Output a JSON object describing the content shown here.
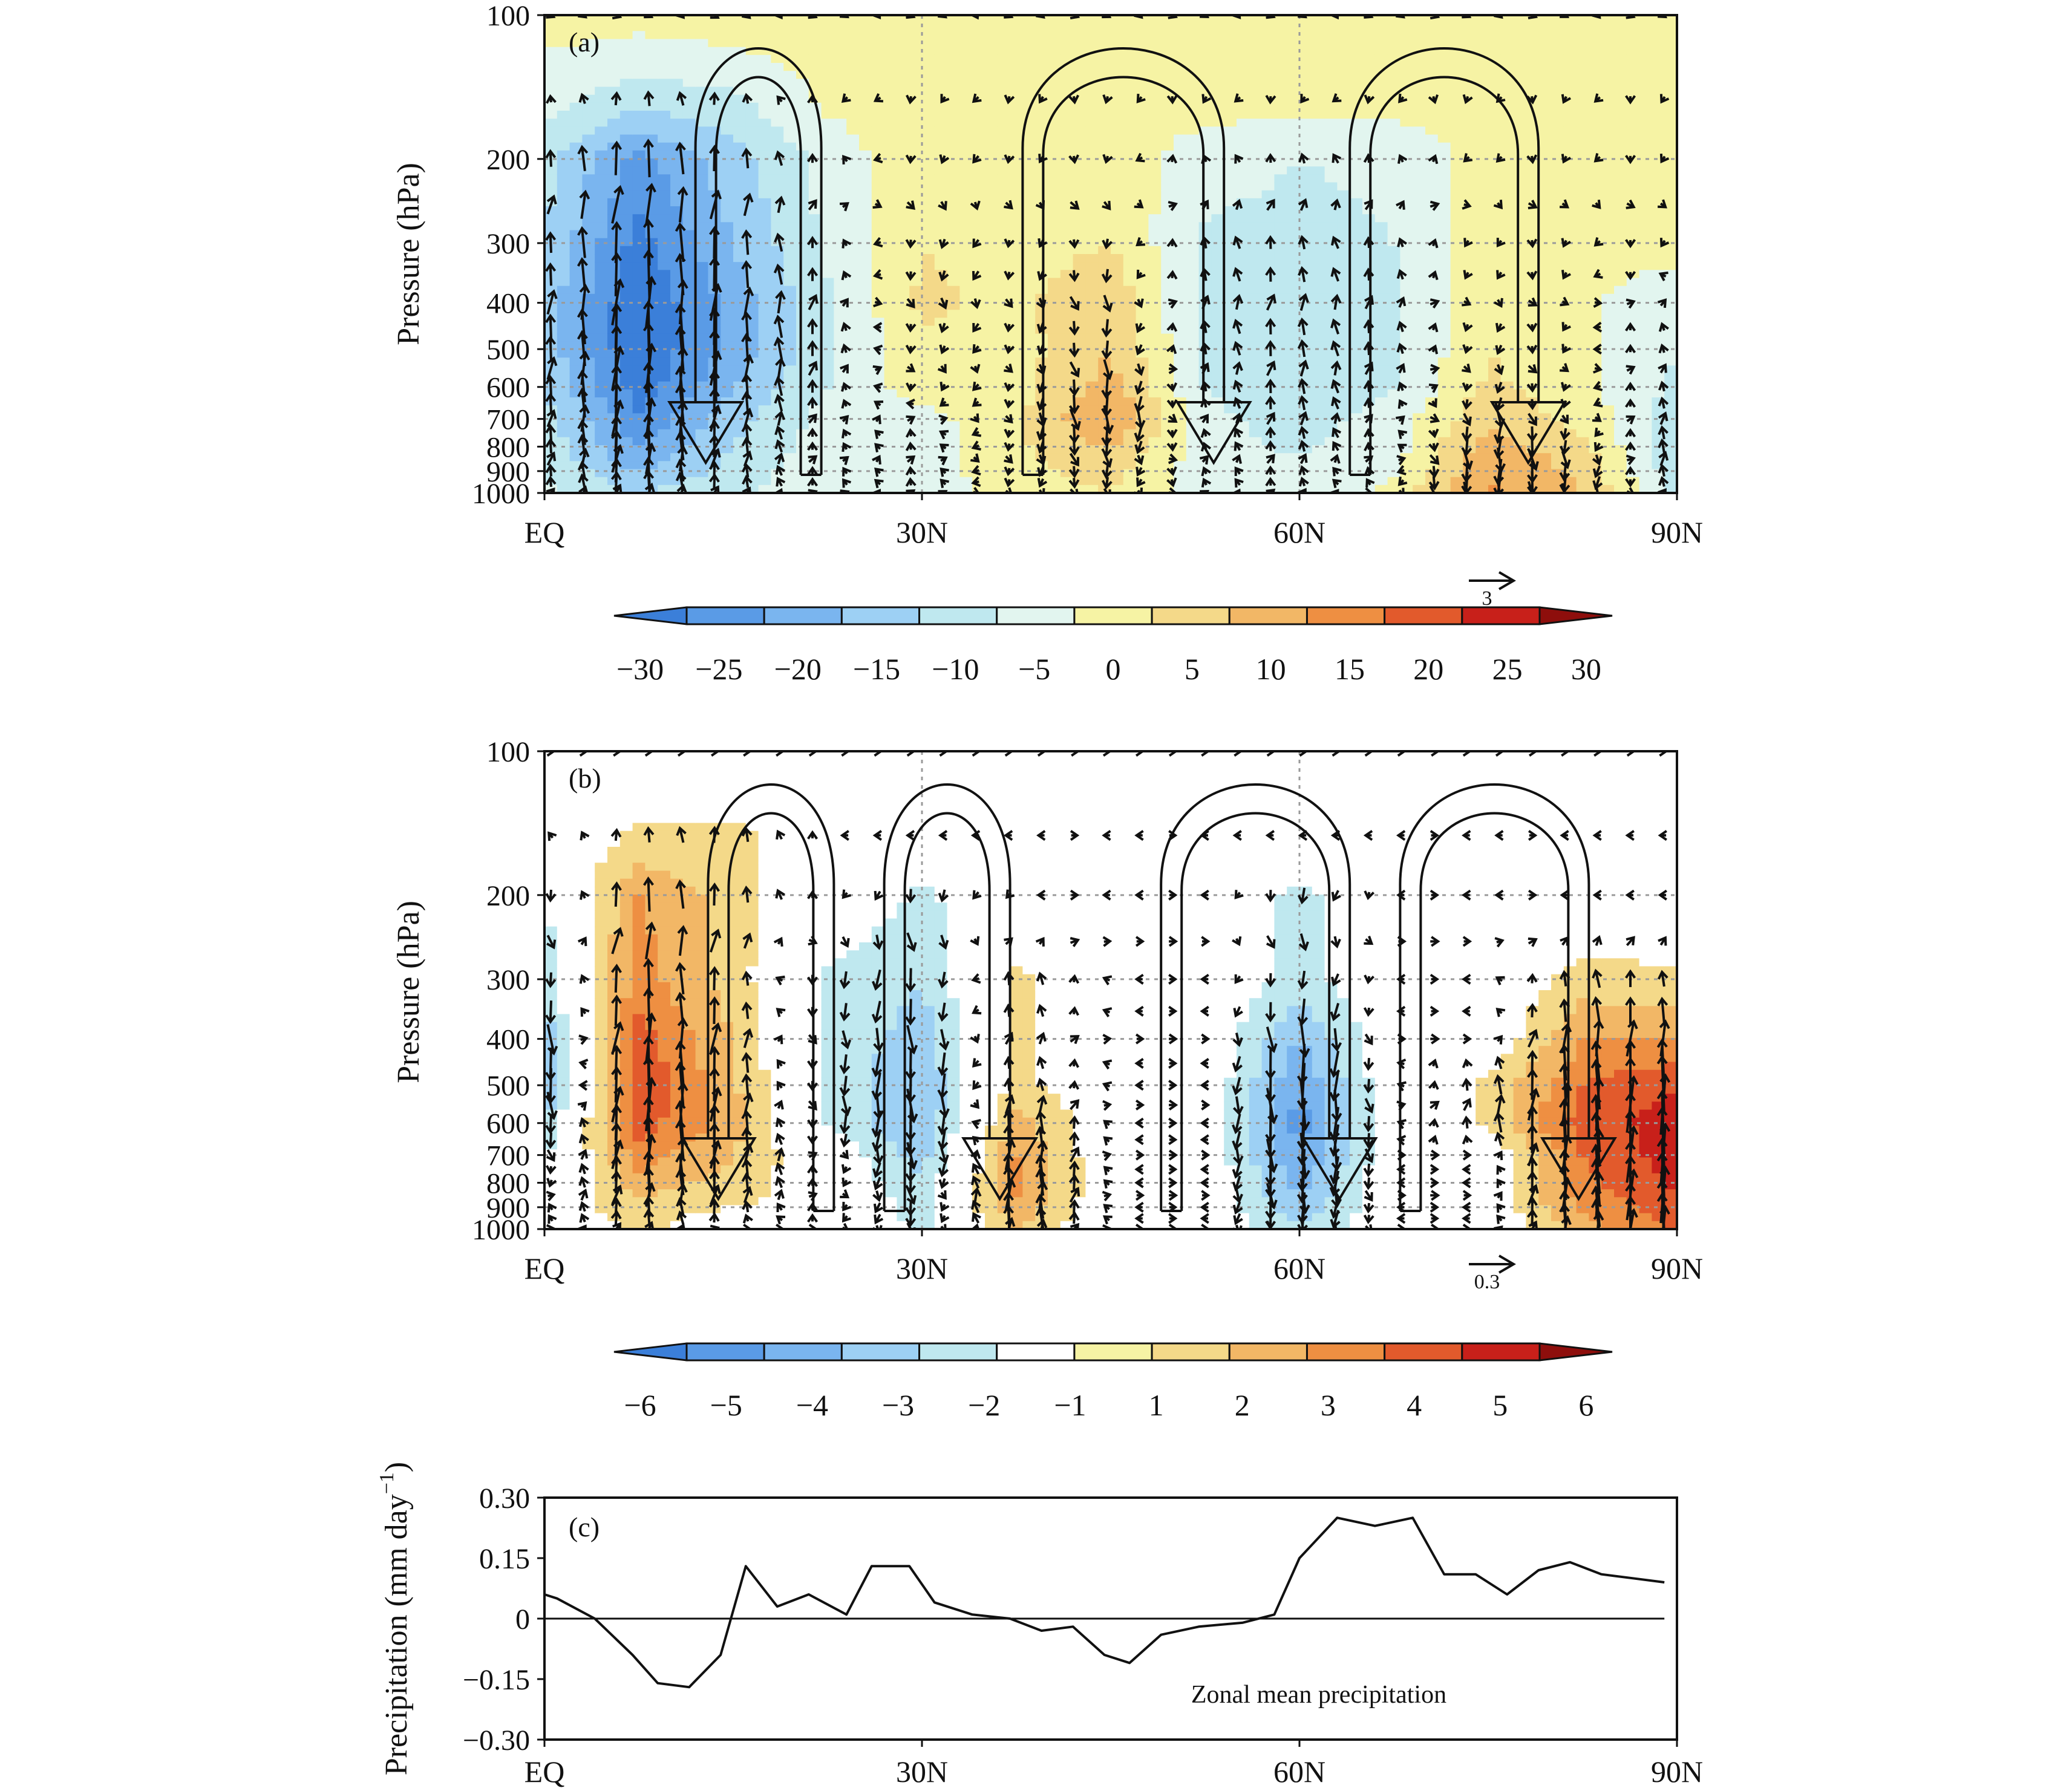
{
  "figure": {
    "panels": [
      "(a)",
      "(b)",
      "(c)"
    ],
    "colors": {
      "axis": "#111111",
      "grid": "#9a9a9a",
      "line": "#111111",
      "vector": "#111111"
    }
  },
  "chart_data": [
    {
      "panel": "(a)",
      "type": "heatmap",
      "title": "(a)",
      "xlabel": "",
      "ylabel": "Pressure (hPa)",
      "x_ticks": [
        "EQ",
        "30N",
        "60N",
        "90N"
      ],
      "x_tick_values": [
        0,
        30,
        60,
        90
      ],
      "xlim": [
        0,
        90
      ],
      "y_ticks": [
        "100",
        "200",
        "300",
        "400",
        "500",
        "600",
        "700",
        "800",
        "900",
        "1000"
      ],
      "y_tick_values": [
        100,
        200,
        300,
        400,
        500,
        600,
        700,
        800,
        900,
        1000
      ],
      "ylim": [
        1000,
        100
      ],
      "y_scale": "log",
      "colorbar": {
        "ticks": [
          "−30",
          "−25",
          "−20",
          "−15",
          "−10",
          "−5",
          "0",
          "5",
          "10",
          "15",
          "20",
          "25",
          "30"
        ],
        "colors": [
          "#3b7fd9",
          "#5a9be6",
          "#7ab5ef",
          "#9dd0f4",
          "#bfe8ef",
          "#e2f5ef",
          "#f6f3a4",
          "#f4d989",
          "#f2b766",
          "#ee8f42",
          "#e25a2c",
          "#c8201a",
          "#8e0e0c"
        ]
      },
      "vector_reference": {
        "label": "3",
        "value": 3
      },
      "field": {
        "lat": [
          0,
          7.5,
          15,
          22.5,
          30,
          37.5,
          45,
          52.5,
          60,
          67.5,
          75,
          82.5,
          90
        ],
        "plev": [
          100,
          150,
          200,
          300,
          400,
          500,
          600,
          700,
          850,
          1000
        ],
        "values": [
          [
            2,
            2,
            3,
            2,
            2,
            2,
            2,
            2,
            2,
            2,
            2,
            2,
            2
          ],
          [
            -3,
            -8,
            -6,
            1,
            2,
            3,
            3,
            2,
            2,
            2,
            2,
            2,
            2
          ],
          [
            -8,
            -22,
            -12,
            -3,
            4,
            3,
            3,
            -3,
            -5,
            -4,
            2,
            2,
            2
          ],
          [
            -10,
            -27,
            -15,
            -4,
            5,
            3,
            5,
            -6,
            -7,
            -5,
            3,
            2,
            2
          ],
          [
            -12,
            -30,
            -18,
            -6,
            6,
            4,
            9,
            -7,
            -9,
            -6,
            4,
            1,
            -4
          ],
          [
            -12,
            -30,
            -18,
            -6,
            4,
            3,
            10,
            -6,
            -9,
            -6,
            5,
            1,
            -5
          ],
          [
            -10,
            -28,
            -15,
            -5,
            3,
            3,
            12,
            -5,
            -8,
            -5,
            6,
            2,
            -6
          ],
          [
            -8,
            -24,
            -12,
            -3,
            -2,
            4,
            16,
            -4,
            -7,
            -3,
            9,
            3,
            -8
          ],
          [
            -6,
            -18,
            -9,
            -2,
            -3,
            4,
            8,
            -3,
            -5,
            -2,
            14,
            8,
            -10
          ],
          [
            -4,
            -10,
            -6,
            -1,
            -3,
            3,
            5,
            -2,
            -4,
            2,
            16,
            10,
            -6
          ]
        ]
      },
      "circulation_cells": [
        {
          "from_lat": 22,
          "to_lat": 12,
          "direction": "clockwise"
        },
        {
          "from_lat": 38,
          "to_lat": 54,
          "direction": "counterclockwise"
        },
        {
          "from_lat": 64,
          "to_lat": 79,
          "direction": "clockwise"
        }
      ]
    },
    {
      "panel": "(b)",
      "type": "heatmap",
      "title": "(b)",
      "xlabel": "",
      "ylabel": "Pressure (hPa)",
      "x_ticks": [
        "EQ",
        "30N",
        "60N",
        "90N"
      ],
      "x_tick_values": [
        0,
        30,
        60,
        90
      ],
      "xlim": [
        0,
        90
      ],
      "y_ticks": [
        "100",
        "200",
        "300",
        "400",
        "500",
        "600",
        "700",
        "800",
        "900",
        "1000"
      ],
      "y_tick_values": [
        100,
        200,
        300,
        400,
        500,
        600,
        700,
        800,
        900,
        1000
      ],
      "ylim": [
        1000,
        100
      ],
      "y_scale": "log",
      "colorbar": {
        "ticks": [
          "−6",
          "−5",
          "−4",
          "−3",
          "−2",
          "−1",
          "1",
          "2",
          "3",
          "4",
          "5",
          "6"
        ],
        "colors": [
          "#3b7fd9",
          "#5a9be6",
          "#7ab5ef",
          "#9dd0f4",
          "#bfe8ef",
          "#ffffff",
          "#f6f3a4",
          "#f4d989",
          "#f2b766",
          "#ee8f42",
          "#e25a2c",
          "#c8201a",
          "#8e0e0c"
        ]
      },
      "vector_reference": {
        "label": "0.3",
        "value": 0.3
      },
      "field": {
        "lat": [
          0,
          7.5,
          15,
          22.5,
          30,
          37.5,
          45,
          52.5,
          60,
          67.5,
          75,
          82.5,
          90
        ],
        "plev": [
          100,
          150,
          200,
          300,
          400,
          500,
          600,
          700,
          850,
          1000
        ],
        "values": [
          [
            0,
            0,
            0,
            0,
            0,
            0,
            0,
            0,
            0,
            0,
            0,
            0,
            0
          ],
          [
            0,
            1.2,
            1.3,
            0,
            0,
            0,
            0,
            0,
            0,
            0,
            0,
            0,
            0
          ],
          [
            -1.2,
            3,
            1.5,
            0,
            -1.2,
            0,
            0,
            0,
            -1.3,
            0,
            0,
            0,
            0
          ],
          [
            -1.5,
            3.5,
            1.5,
            -1.2,
            -2,
            1.3,
            0,
            0,
            -1.5,
            0,
            0,
            1.5,
            1.2
          ],
          [
            -3,
            4.5,
            2,
            -1.2,
            -2.5,
            1.2,
            0,
            0,
            -3,
            0,
            0,
            3,
            3
          ],
          [
            -3.5,
            5,
            2.2,
            -1.3,
            -3,
            1.3,
            0,
            0,
            -4,
            0,
            1.2,
            4,
            5
          ],
          [
            -2,
            4.5,
            2.5,
            -1.2,
            -3,
            2.5,
            0,
            0,
            -4.5,
            0,
            1.2,
            4.5,
            5.5
          ],
          [
            -1.2,
            3.5,
            2,
            0,
            -2.5,
            3,
            0,
            0,
            -4,
            0,
            0,
            4,
            5.5
          ],
          [
            0,
            2,
            1.5,
            0,
            -1.5,
            3,
            0,
            0,
            -3,
            0,
            0,
            3.5,
            5
          ],
          [
            0,
            1.2,
            0,
            0,
            -1.2,
            2,
            0,
            0,
            -2,
            0,
            0,
            2.5,
            4
          ]
        ]
      },
      "circulation_cells": [
        {
          "from_lat": 23,
          "to_lat": 13,
          "direction": "clockwise"
        },
        {
          "from_lat": 27,
          "to_lat": 37,
          "direction": "counterclockwise"
        },
        {
          "from_lat": 49,
          "to_lat": 64,
          "direction": "clockwise"
        },
        {
          "from_lat": 68,
          "to_lat": 83,
          "direction": "counterclockwise"
        }
      ]
    },
    {
      "panel": "(c)",
      "type": "line",
      "title": "(c)",
      "xlabel": "",
      "ylabel": "Precipitation (mm day",
      "ylabel_sup": "−1",
      "ylabel_suffix": ")",
      "annotation": "Zonal mean precipitation",
      "x_ticks": [
        "EQ",
        "30N",
        "60N",
        "90N"
      ],
      "x_tick_values": [
        0,
        30,
        60,
        90
      ],
      "xlim": [
        0,
        90
      ],
      "y_ticks": [
        "0.30",
        "0.15",
        "0",
        "−0.15",
        "−0.30"
      ],
      "y_tick_values": [
        0.3,
        0.15,
        0,
        -0.15,
        -0.3
      ],
      "ylim": [
        -0.3,
        0.3
      ],
      "series": [
        {
          "name": "Zonal mean precipitation",
          "x": [
            0,
            1,
            4,
            7,
            9,
            11.5,
            14,
            16,
            18.5,
            21,
            24,
            26,
            29,
            31,
            34,
            37,
            39.5,
            42,
            44.5,
            46.5,
            49,
            52,
            55.5,
            58,
            60,
            63,
            66,
            69,
            71.5,
            74,
            76.5,
            79,
            81.5,
            84,
            86.5,
            89
          ],
          "values": [
            0.06,
            0.05,
            0.0,
            -0.09,
            -0.16,
            -0.17,
            -0.09,
            0.13,
            0.03,
            0.06,
            0.01,
            0.13,
            0.13,
            0.04,
            0.01,
            0.0,
            -0.03,
            -0.02,
            -0.09,
            -0.11,
            -0.04,
            -0.02,
            -0.01,
            0.01,
            0.15,
            0.25,
            0.23,
            0.25,
            0.11,
            0.11,
            0.06,
            0.12,
            0.14,
            0.11,
            0.1,
            0.09
          ]
        }
      ],
      "baseline": 0
    }
  ]
}
